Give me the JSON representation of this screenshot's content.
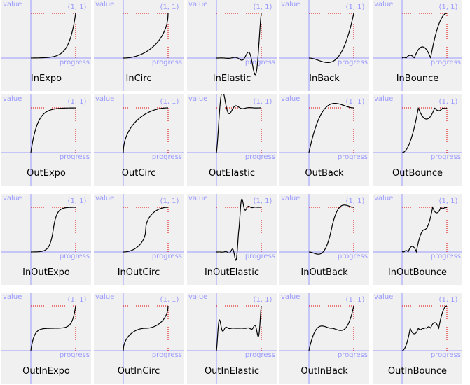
{
  "axis_labels": {
    "y": "value",
    "x": "progress",
    "corner": "(1, 1)"
  },
  "colors": {
    "axis": "#9a9aff",
    "curve": "#000000",
    "guide": "#e00000",
    "tile": "#f0f0f0",
    "label": "#9a9aff"
  },
  "tiles": [
    {
      "name": "InExpo",
      "fn": "inExpo"
    },
    {
      "name": "InCirc",
      "fn": "inCirc"
    },
    {
      "name": "InElastic",
      "fn": "inElastic"
    },
    {
      "name": "InBack",
      "fn": "inBack"
    },
    {
      "name": "InBounce",
      "fn": "inBounce"
    },
    {
      "name": "OutExpo",
      "fn": "outExpo"
    },
    {
      "name": "OutCirc",
      "fn": "outCirc"
    },
    {
      "name": "OutElastic",
      "fn": "outElastic"
    },
    {
      "name": "OutBack",
      "fn": "outBack"
    },
    {
      "name": "OutBounce",
      "fn": "outBounce"
    },
    {
      "name": "InOutExpo",
      "fn": "inOutExpo"
    },
    {
      "name": "InOutCirc",
      "fn": "inOutCirc"
    },
    {
      "name": "InOutElastic",
      "fn": "inOutElastic"
    },
    {
      "name": "InOutBack",
      "fn": "inOutBack"
    },
    {
      "name": "InOutBounce",
      "fn": "inOutBounce"
    },
    {
      "name": "OutInExpo",
      "fn": "outInExpo"
    },
    {
      "name": "OutInCirc",
      "fn": "outInCirc"
    },
    {
      "name": "OutInElastic",
      "fn": "outInElastic"
    },
    {
      "name": "OutInBack",
      "fn": "outInBack"
    },
    {
      "name": "OutInBounce",
      "fn": "outInBounce"
    }
  ]
}
